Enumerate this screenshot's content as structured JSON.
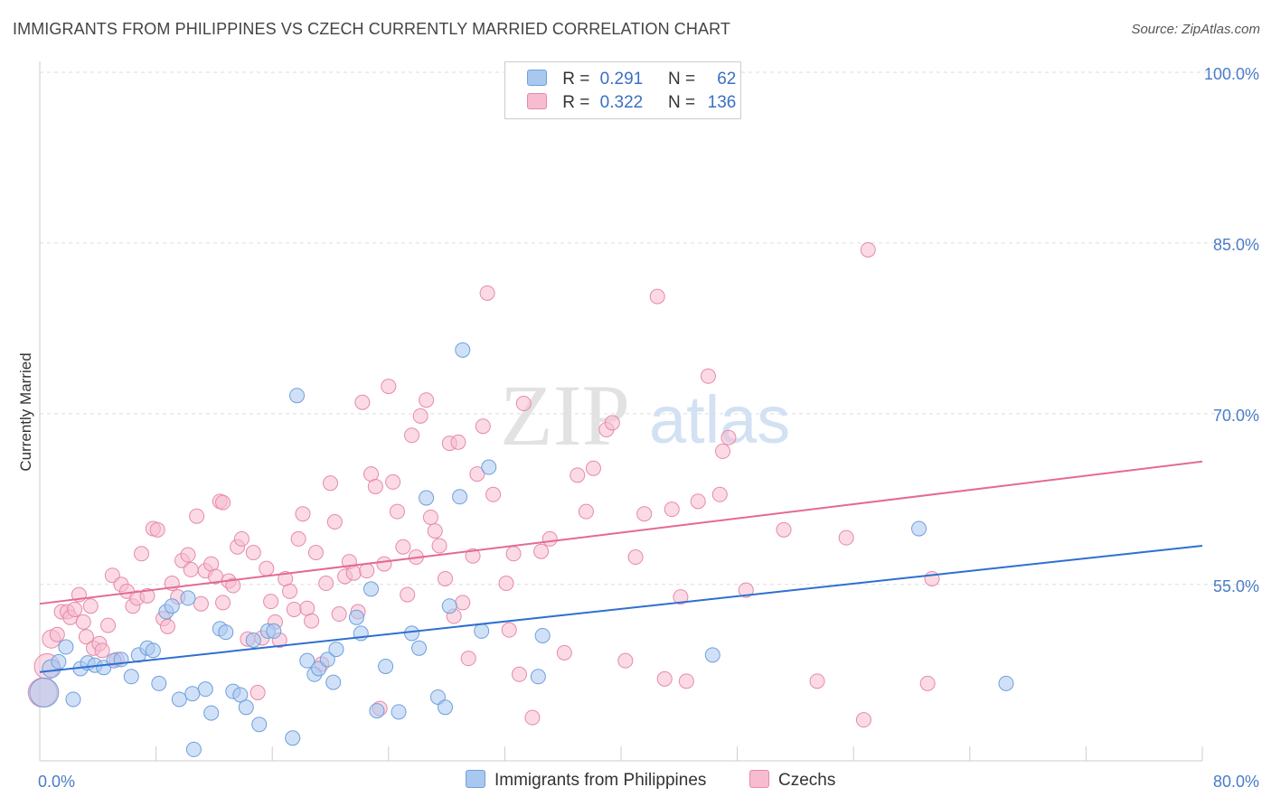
{
  "header": {
    "title": "IMMIGRANTS FROM PHILIPPINES VS CZECH CURRENTLY MARRIED CORRELATION CHART",
    "source": "Source: ZipAtlas.com"
  },
  "watermark": {
    "part1": "ZIP",
    "part2": "atlas"
  },
  "legend": {
    "series1": {
      "r_label": "R =",
      "r_value": "0.291",
      "n_label": "N =",
      "n_value": "62"
    },
    "series2": {
      "r_label": "R =",
      "r_value": "0.322",
      "n_label": "N =",
      "n_value": "136"
    }
  },
  "bottom_legend": {
    "series1": "Immigrants from Philippines",
    "series2": "Czechs"
  },
  "colors": {
    "blue_fill": "#a9c8f0",
    "blue_stroke": "#6f9fdc",
    "blue_line": "#2f6fcf",
    "pink_fill": "#f7bcd0",
    "pink_stroke": "#e68aa8",
    "pink_line": "#e36a94",
    "grid": "#dddddd",
    "tick_text": "#4a7cc7"
  },
  "chart_data": {
    "type": "scatter",
    "ylabel": "Currently Married",
    "xlim": [
      0,
      80
    ],
    "ylim": [
      39.5,
      100
    ],
    "x_tick_labels": [
      {
        "x": 0,
        "label": "0.0%"
      },
      {
        "x": 80,
        "label": "80.0%"
      }
    ],
    "y_tick_labels": [
      {
        "y": 55,
        "label": "55.0%"
      },
      {
        "y": 70,
        "label": "70.0%"
      },
      {
        "y": 85,
        "label": "85.0%"
      },
      {
        "y": 100,
        "label": "100.0%"
      }
    ],
    "grid": true,
    "series": [
      {
        "name": "Immigrants from Philippines",
        "r": 0.291,
        "n": 62,
        "trend": {
          "x1": 0,
          "y1": 47.3,
          "x2": 80,
          "y2": 58.4
        },
        "points": [
          [
            0.3,
            45.5,
            16
          ],
          [
            0.8,
            47.6,
            10
          ],
          [
            1.3,
            48.2,
            8
          ],
          [
            1.8,
            49.5,
            8
          ],
          [
            2.3,
            44.9,
            8
          ],
          [
            2.8,
            47.6,
            8
          ],
          [
            3.3,
            48.1,
            8
          ],
          [
            3.8,
            47.9,
            8
          ],
          [
            4.4,
            47.7,
            8
          ],
          [
            5.1,
            48.3,
            8
          ],
          [
            5.6,
            48.4,
            8
          ],
          [
            6.3,
            46.9,
            8
          ],
          [
            6.8,
            48.8,
            8
          ],
          [
            7.4,
            49.4,
            8
          ],
          [
            7.8,
            49.2,
            8
          ],
          [
            8.2,
            46.3,
            8
          ],
          [
            8.7,
            52.6,
            8
          ],
          [
            9.1,
            53.1,
            8
          ],
          [
            9.6,
            44.9,
            8
          ],
          [
            10.2,
            53.8,
            8
          ],
          [
            10.6,
            40.5,
            8
          ],
          [
            11.4,
            45.8,
            8
          ],
          [
            11.8,
            43.7,
            8
          ],
          [
            12.4,
            51.1,
            8
          ],
          [
            12.8,
            50.8,
            8
          ],
          [
            13.3,
            45.6,
            8
          ],
          [
            13.8,
            45.3,
            8
          ],
          [
            14.2,
            44.2,
            8
          ],
          [
            14.7,
            50.1,
            8
          ],
          [
            15.1,
            42.7,
            8
          ],
          [
            15.7,
            50.9,
            8
          ],
          [
            16.1,
            50.9,
            8
          ],
          [
            17.4,
            41.5,
            8
          ],
          [
            17.7,
            71.6,
            8
          ],
          [
            18.4,
            48.3,
            8
          ],
          [
            18.9,
            47.1,
            8
          ],
          [
            19.2,
            47.6,
            8
          ],
          [
            19.8,
            48.4,
            8
          ],
          [
            20.2,
            46.4,
            8
          ],
          [
            20.4,
            49.3,
            8
          ],
          [
            21.8,
            52.1,
            8
          ],
          [
            22.1,
            50.7,
            8
          ],
          [
            22.8,
            54.6,
            8
          ],
          [
            23.2,
            43.9,
            8
          ],
          [
            23.8,
            47.8,
            8
          ],
          [
            24.7,
            43.8,
            8
          ],
          [
            25.6,
            50.7,
            8
          ],
          [
            26.1,
            49.4,
            8
          ],
          [
            26.6,
            62.6,
            8
          ],
          [
            27.4,
            45.1,
            8
          ],
          [
            27.9,
            44.2,
            8
          ],
          [
            28.2,
            53.1,
            8
          ],
          [
            29.1,
            75.6,
            8
          ],
          [
            28.9,
            62.7,
            8
          ],
          [
            30.4,
            50.9,
            8
          ],
          [
            30.9,
            65.3,
            8
          ],
          [
            34.3,
            46.9,
            8
          ],
          [
            34.6,
            50.5,
            8
          ],
          [
            46.3,
            48.8,
            8
          ],
          [
            60.5,
            59.9,
            8
          ],
          [
            66.5,
            46.3,
            8
          ],
          [
            10.5,
            45.4,
            8
          ]
        ]
      },
      {
        "name": "Czechs",
        "r": 0.322,
        "n": 136,
        "trend": {
          "x1": 0,
          "y1": 53.3,
          "x2": 80,
          "y2": 65.8
        },
        "points": [
          [
            0.2,
            45.5,
            16
          ],
          [
            0.5,
            47.8,
            14
          ],
          [
            0.8,
            50.2,
            10
          ],
          [
            1.2,
            50.6,
            8
          ],
          [
            1.5,
            52.6,
            8
          ],
          [
            1.9,
            52.6,
            8
          ],
          [
            2.1,
            52.1,
            8
          ],
          [
            2.4,
            52.8,
            8
          ],
          [
            2.7,
            54.1,
            8
          ],
          [
            3.0,
            51.7,
            8
          ],
          [
            3.2,
            50.4,
            8
          ],
          [
            3.5,
            53.1,
            8
          ],
          [
            3.7,
            49.4,
            8
          ],
          [
            4.1,
            49.8,
            8
          ],
          [
            4.3,
            49.2,
            8
          ],
          [
            4.7,
            51.4,
            8
          ],
          [
            5.0,
            55.8,
            8
          ],
          [
            5.3,
            48.4,
            8
          ],
          [
            5.6,
            55.0,
            8
          ],
          [
            6.0,
            54.4,
            8
          ],
          [
            6.4,
            53.1,
            8
          ],
          [
            6.7,
            53.8,
            8
          ],
          [
            7.0,
            57.7,
            8
          ],
          [
            7.4,
            54.0,
            8
          ],
          [
            7.8,
            59.9,
            8
          ],
          [
            8.1,
            59.8,
            8
          ],
          [
            8.5,
            52.0,
            8
          ],
          [
            8.8,
            51.3,
            8
          ],
          [
            9.1,
            55.1,
            8
          ],
          [
            9.5,
            53.9,
            8
          ],
          [
            9.8,
            57.1,
            8
          ],
          [
            10.2,
            57.6,
            8
          ],
          [
            10.4,
            56.3,
            8
          ],
          [
            10.8,
            61.0,
            8
          ],
          [
            11.1,
            53.3,
            8
          ],
          [
            11.4,
            56.2,
            8
          ],
          [
            11.8,
            56.8,
            8
          ],
          [
            12.1,
            55.7,
            8
          ],
          [
            12.4,
            62.3,
            8
          ],
          [
            12.6,
            53.4,
            8
          ],
          [
            13.0,
            55.3,
            8
          ],
          [
            13.3,
            54.9,
            8
          ],
          [
            13.6,
            58.3,
            8
          ],
          [
            13.9,
            59.0,
            8
          ],
          [
            14.3,
            50.2,
            8
          ],
          [
            14.7,
            57.8,
            8
          ],
          [
            15.0,
            45.5,
            8
          ],
          [
            15.3,
            50.3,
            8
          ],
          [
            15.6,
            56.4,
            8
          ],
          [
            15.9,
            53.5,
            8
          ],
          [
            16.2,
            51.7,
            8
          ],
          [
            16.5,
            50.1,
            8
          ],
          [
            16.9,
            55.5,
            8
          ],
          [
            17.2,
            54.4,
            8
          ],
          [
            17.5,
            52.8,
            8
          ],
          [
            17.8,
            59.0,
            8
          ],
          [
            18.1,
            61.2,
            8
          ],
          [
            18.4,
            52.9,
            8
          ],
          [
            18.7,
            51.8,
            8
          ],
          [
            19.0,
            57.8,
            8
          ],
          [
            19.4,
            48.0,
            8
          ],
          [
            19.7,
            55.1,
            8
          ],
          [
            20.0,
            63.9,
            8
          ],
          [
            20.3,
            60.5,
            8
          ],
          [
            20.6,
            52.4,
            8
          ],
          [
            21.0,
            55.7,
            8
          ],
          [
            21.3,
            57.0,
            8
          ],
          [
            21.6,
            56.0,
            8
          ],
          [
            21.9,
            52.6,
            8
          ],
          [
            22.2,
            71.0,
            8
          ],
          [
            22.5,
            56.2,
            8
          ],
          [
            22.8,
            64.7,
            8
          ],
          [
            23.1,
            63.6,
            8
          ],
          [
            23.4,
            44.1,
            8
          ],
          [
            23.7,
            56.8,
            8
          ],
          [
            24.0,
            72.4,
            8
          ],
          [
            24.3,
            64.0,
            8
          ],
          [
            24.6,
            61.4,
            8
          ],
          [
            25.0,
            58.3,
            8
          ],
          [
            25.3,
            54.1,
            8
          ],
          [
            25.6,
            68.1,
            8
          ],
          [
            25.9,
            57.4,
            8
          ],
          [
            26.2,
            69.8,
            8
          ],
          [
            26.6,
            71.2,
            8
          ],
          [
            26.9,
            60.9,
            8
          ],
          [
            27.2,
            59.7,
            8
          ],
          [
            27.5,
            58.4,
            8
          ],
          [
            27.9,
            55.5,
            8
          ],
          [
            28.2,
            67.4,
            8
          ],
          [
            28.5,
            52.2,
            8
          ],
          [
            28.8,
            67.5,
            8
          ],
          [
            29.1,
            53.4,
            8
          ],
          [
            29.5,
            48.5,
            8
          ],
          [
            29.8,
            57.5,
            8
          ],
          [
            30.1,
            64.7,
            8
          ],
          [
            30.5,
            68.9,
            8
          ],
          [
            30.8,
            80.6,
            8
          ],
          [
            31.2,
            62.9,
            8
          ],
          [
            32.1,
            55.1,
            8
          ],
          [
            32.3,
            51.0,
            8
          ],
          [
            32.6,
            57.7,
            8
          ],
          [
            33.0,
            47.1,
            8
          ],
          [
            33.3,
            70.9,
            8
          ],
          [
            33.9,
            43.3,
            8
          ],
          [
            34.5,
            57.9,
            8
          ],
          [
            35.1,
            59.0,
            8
          ],
          [
            36.1,
            49.0,
            8
          ],
          [
            37.0,
            64.6,
            8
          ],
          [
            37.6,
            61.4,
            8
          ],
          [
            38.1,
            65.2,
            8
          ],
          [
            39.0,
            68.6,
            8
          ],
          [
            39.4,
            69.2,
            8
          ],
          [
            40.3,
            48.3,
            8
          ],
          [
            41.0,
            57.4,
            8
          ],
          [
            41.6,
            61.2,
            8
          ],
          [
            42.5,
            80.3,
            8
          ],
          [
            43.0,
            46.7,
            8
          ],
          [
            43.5,
            61.6,
            8
          ],
          [
            44.1,
            53.9,
            8
          ],
          [
            44.5,
            46.5,
            8
          ],
          [
            45.3,
            62.3,
            8
          ],
          [
            46.0,
            73.3,
            8
          ],
          [
            46.8,
            62.9,
            8
          ],
          [
            47.0,
            66.7,
            8
          ],
          [
            47.4,
            67.9,
            8
          ],
          [
            48.6,
            54.5,
            8
          ],
          [
            51.2,
            59.8,
            8
          ],
          [
            53.5,
            46.5,
            8
          ],
          [
            55.5,
            59.1,
            8
          ],
          [
            56.7,
            43.1,
            8
          ],
          [
            57.0,
            84.4,
            8
          ],
          [
            61.1,
            46.3,
            8
          ],
          [
            61.4,
            55.5,
            8
          ],
          [
            12.6,
            62.2,
            8
          ]
        ]
      }
    ]
  }
}
